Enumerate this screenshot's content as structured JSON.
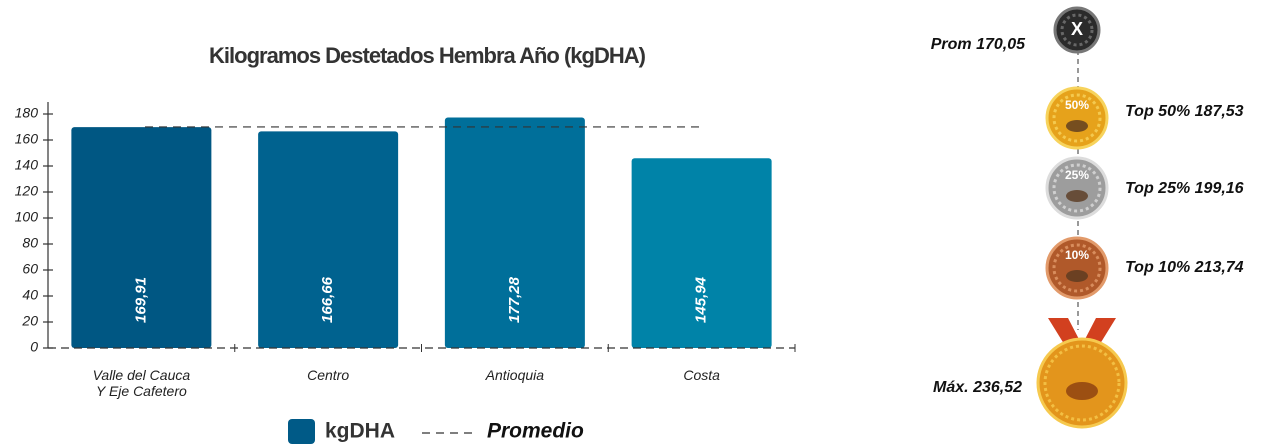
{
  "chart_data": {
    "type": "bar",
    "title": "Kilogramos Destetados Hembra Año (kgDHA)",
    "categories": [
      "Valle del Cauca\nY Eje Cafetero",
      "Centro",
      "Antioquia",
      "Costa"
    ],
    "series": [
      {
        "name": "kgDHA",
        "color": "#005a87",
        "colors": [
          "#005783",
          "#00628f",
          "#006f9a",
          "#0083a8"
        ],
        "values": [
          169.91,
          166.66,
          177.28,
          145.94
        ],
        "value_labels": [
          "169,91",
          "166,66",
          "177,28",
          "145,94"
        ]
      }
    ],
    "reference": {
      "name": "Promedio",
      "value": 170.05
    },
    "ylim": [
      0,
      180
    ],
    "yticks": [
      0,
      20,
      40,
      60,
      80,
      100,
      120,
      140,
      160,
      180
    ]
  },
  "medals": [
    {
      "icon": "X",
      "label": "Prom 170,05"
    },
    {
      "icon": "50%",
      "label": "Top 50% 187,53"
    },
    {
      "icon": "25%",
      "label": "Top 25% 199,16"
    },
    {
      "icon": "10%",
      "label": "Top 10% 213,74"
    },
    {
      "label": "Máx. 236,52"
    }
  ]
}
